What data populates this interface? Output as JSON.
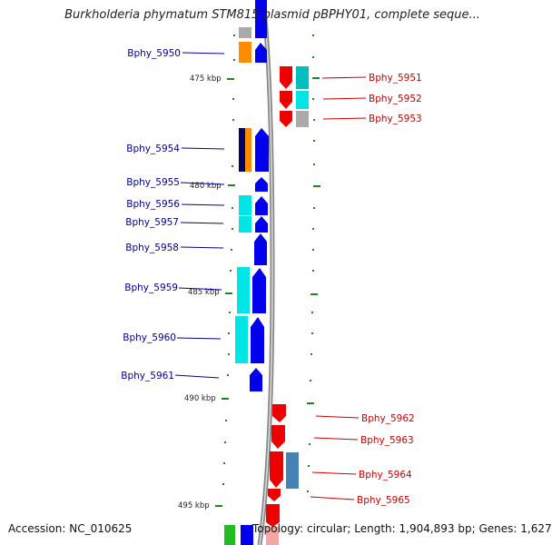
{
  "title": "Burkholderia phymatum STM815 plasmid pBPHY01, complete seque...",
  "accession": "Accession: NC_010625",
  "topology": "Topology: circular; Length: 1,904,893 bp; Genes: 1,627",
  "ticks": [
    {
      "label": "475 kbp"
    },
    {
      "label": "480 kbp"
    },
    {
      "label": "485 kbp"
    },
    {
      "label": "490 kbp"
    },
    {
      "label": "495 kbp"
    }
  ],
  "genes_left": [
    {
      "name": "Bphy_5950"
    },
    {
      "name": "Bphy_5954"
    },
    {
      "name": "Bphy_5955"
    },
    {
      "name": "Bphy_5956"
    },
    {
      "name": "Bphy_5957"
    },
    {
      "name": "Bphy_5958"
    },
    {
      "name": "Bphy_5959"
    },
    {
      "name": "Bphy_5960"
    },
    {
      "name": "Bphy_5961"
    }
  ],
  "genes_right": [
    {
      "name": "Bphy_5951"
    },
    {
      "name": "Bphy_5952"
    },
    {
      "name": "Bphy_5953"
    },
    {
      "name": "Bphy_5962"
    },
    {
      "name": "Bphy_5963"
    },
    {
      "name": "Bphy_5964"
    },
    {
      "name": "Bphy_5965"
    }
  ],
  "colors": {
    "forward_strand": "#0000ee",
    "reverse_strand": "#ee0000",
    "left_label": "#000099",
    "right_label": "#cc0000",
    "backbone": "#888888",
    "tick_mark": "#1a8a1a",
    "cog_cyan": "#00e5e5",
    "cog_teal": "#00bfbf",
    "cog_orange": "#ff8c00",
    "cog_navy": "#000066",
    "cog_grey": "#aaaaaa",
    "cog_steelblue": "#4682b4",
    "cog_green": "#22bb22"
  }
}
